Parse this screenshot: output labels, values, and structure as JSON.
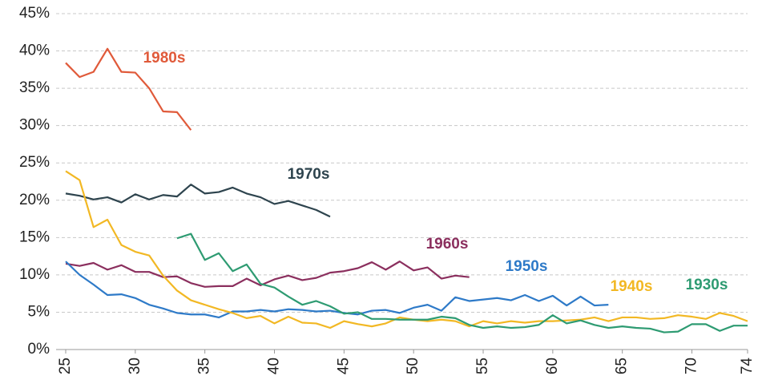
{
  "chart_data": {
    "type": "line",
    "x": [
      25,
      26,
      27,
      28,
      29,
      30,
      31,
      32,
      33,
      34,
      35,
      36,
      37,
      38,
      39,
      40,
      41,
      42,
      43,
      44,
      45,
      46,
      47,
      48,
      49,
      50,
      51,
      52,
      53,
      54,
      55,
      56,
      57,
      58,
      59,
      60,
      61,
      62,
      63,
      64,
      65,
      66,
      67,
      68,
      69,
      70,
      71,
      72,
      73,
      74
    ],
    "series": [
      {
        "name": "1980s",
        "color": "#e05a3a",
        "values": [
          38.4,
          36.5,
          37.2,
          40.3,
          37.2,
          37.1,
          35.0,
          31.9,
          31.8,
          29.4,
          null,
          null,
          null,
          null,
          null,
          null,
          null,
          null,
          null,
          null,
          null,
          null,
          null,
          null,
          null,
          null,
          null,
          null,
          null,
          null,
          null,
          null,
          null,
          null,
          null,
          null,
          null,
          null,
          null,
          null,
          null,
          null,
          null,
          null,
          null,
          null,
          null,
          null,
          null,
          null
        ]
      },
      {
        "name": "1970s",
        "color": "#2e444e",
        "values": [
          20.9,
          20.6,
          20.1,
          20.4,
          19.7,
          20.8,
          20.1,
          20.7,
          20.5,
          22.1,
          20.9,
          21.1,
          21.7,
          20.9,
          20.4,
          19.5,
          19.9,
          19.3,
          18.7,
          17.8,
          null,
          null,
          null,
          null,
          null,
          null,
          null,
          null,
          null,
          null,
          null,
          null,
          null,
          null,
          null,
          null,
          null,
          null,
          null,
          null,
          null,
          null,
          null,
          null,
          null,
          null,
          null,
          null,
          null,
          null
        ]
      },
      {
        "name": "1960s",
        "color": "#8b2f5e",
        "values": [
          11.5,
          11.2,
          11.6,
          10.7,
          11.3,
          10.4,
          10.4,
          9.7,
          9.8,
          8.9,
          8.4,
          8.5,
          8.5,
          9.5,
          8.6,
          9.4,
          9.9,
          9.3,
          9.6,
          10.3,
          10.5,
          10.9,
          11.7,
          10.7,
          11.8,
          10.6,
          11.0,
          9.5,
          9.9,
          9.7,
          null,
          null,
          null,
          null,
          null,
          null,
          null,
          null,
          null,
          null,
          null,
          null,
          null,
          null,
          null,
          null,
          null,
          null,
          null,
          null
        ]
      },
      {
        "name": "1950s",
        "color": "#2e7ac8",
        "values": [
          11.8,
          10.0,
          8.7,
          7.3,
          7.4,
          6.9,
          6.0,
          5.5,
          4.9,
          4.7,
          4.7,
          4.3,
          5.1,
          5.1,
          5.3,
          5.1,
          5.4,
          5.3,
          5.1,
          5.2,
          4.9,
          4.7,
          5.2,
          5.3,
          4.9,
          5.6,
          6.0,
          5.2,
          7.0,
          6.5,
          6.7,
          6.9,
          6.6,
          7.3,
          6.5,
          7.2,
          5.9,
          7.1,
          5.9,
          6.0,
          null,
          null,
          null,
          null,
          null,
          null,
          null,
          null,
          null,
          null
        ]
      },
      {
        "name": "1940s",
        "color": "#f2b824",
        "values": [
          23.9,
          22.7,
          16.4,
          17.4,
          14.0,
          13.1,
          12.6,
          9.9,
          7.9,
          6.6,
          6.0,
          5.4,
          4.9,
          4.2,
          4.5,
          3.5,
          4.4,
          3.6,
          3.5,
          2.9,
          3.8,
          3.4,
          3.1,
          3.5,
          4.3,
          4.0,
          3.8,
          4.0,
          3.8,
          3.1,
          3.8,
          3.5,
          3.8,
          3.6,
          3.8,
          3.8,
          3.9,
          4.0,
          4.3,
          3.8,
          4.3,
          4.3,
          4.1,
          4.2,
          4.6,
          4.4,
          4.1,
          4.9,
          4.5,
          3.8
        ]
      },
      {
        "name": "1930s",
        "color": "#2e9b72",
        "values": [
          null,
          null,
          null,
          null,
          null,
          null,
          null,
          null,
          14.9,
          15.5,
          12.0,
          12.9,
          10.5,
          11.4,
          8.8,
          8.3,
          7.1,
          6.0,
          6.5,
          5.8,
          4.8,
          5.0,
          4.1,
          4.1,
          4.0,
          4.0,
          4.0,
          4.4,
          4.2,
          3.3,
          2.9,
          3.1,
          2.9,
          3.0,
          3.3,
          4.6,
          3.5,
          3.9,
          3.3,
          2.9,
          3.1,
          2.9,
          2.8,
          2.3,
          2.4,
          3.4,
          3.4,
          2.5,
          3.2,
          3.2
        ]
      }
    ],
    "xlim": [
      25,
      74
    ],
    "xticks": [
      25,
      30,
      35,
      40,
      45,
      50,
      55,
      60,
      65,
      70,
      74
    ],
    "ylim": [
      0,
      45
    ],
    "yticks": [
      {
        "value": 0,
        "label": "0%"
      },
      {
        "value": 5,
        "label": "5%"
      },
      {
        "value": 10,
        "label": "10%"
      },
      {
        "value": 15,
        "label": "15%"
      },
      {
        "value": 20,
        "label": "20%"
      },
      {
        "value": 25,
        "label": "25%"
      },
      {
        "value": 30,
        "label": "30%"
      },
      {
        "value": 35,
        "label": "35%"
      },
      {
        "value": 40,
        "label": "40%"
      },
      {
        "value": 45,
        "label": "45%"
      }
    ],
    "grid": true
  }
}
